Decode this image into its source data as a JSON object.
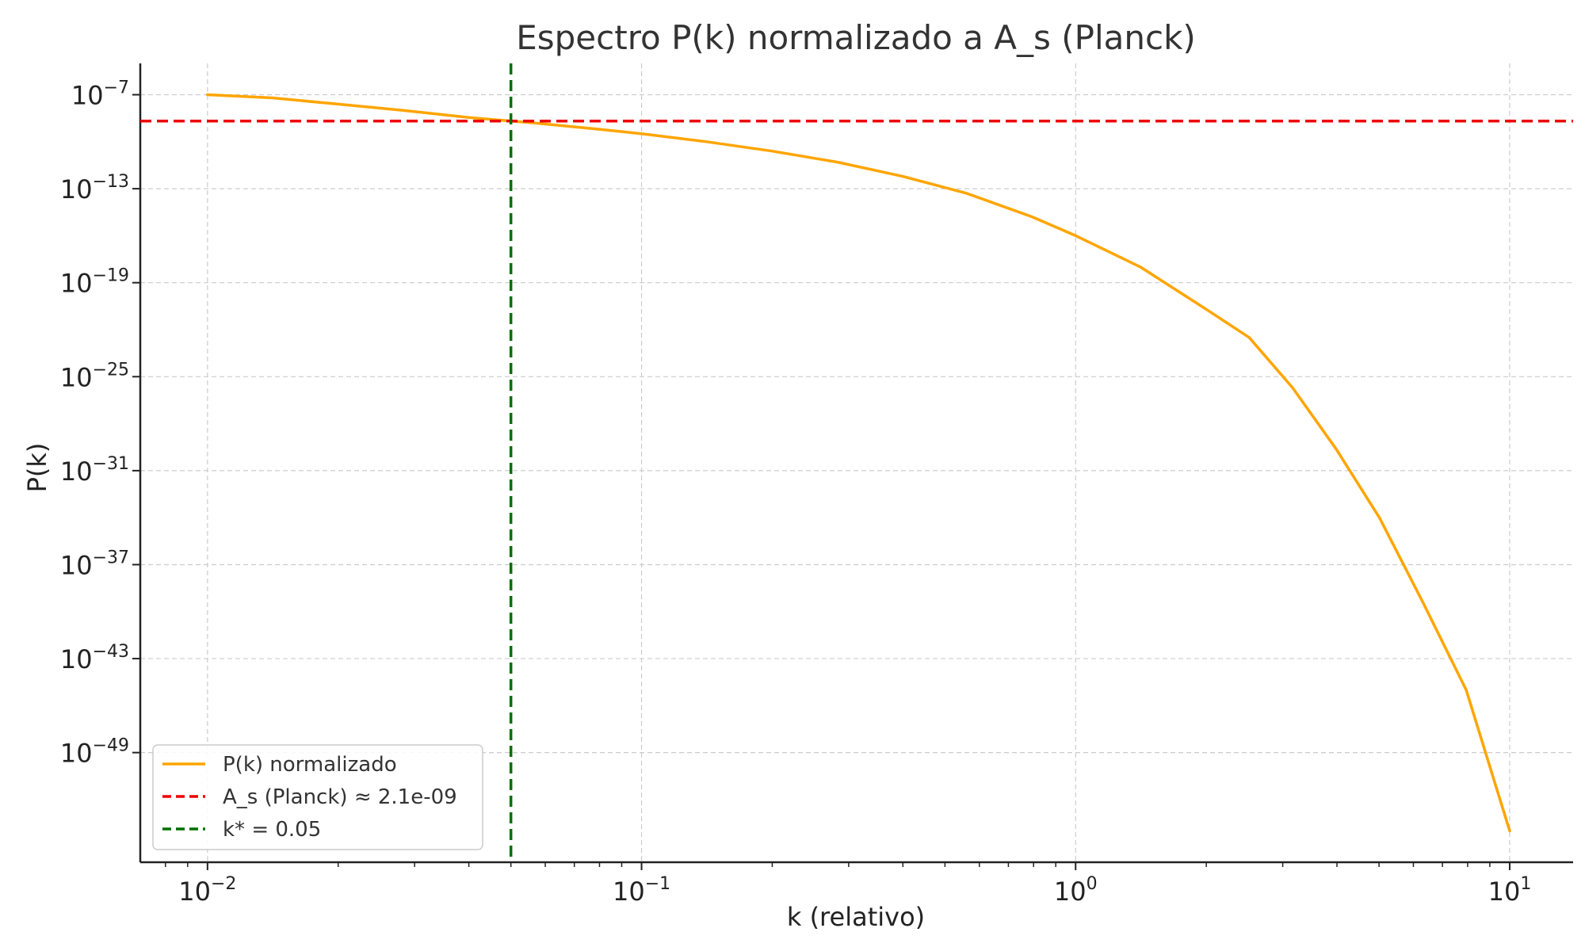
{
  "chart_data": {
    "type": "line",
    "title": "Espectro P(k) normalizado a A_s (Planck)",
    "xlabel": "k (relativo)",
    "ylabel": "P(k)",
    "xscale": "log",
    "yscale": "log",
    "xlim": [
      0.007,
      14
    ],
    "ylim": [
      1e-56,
      1e-05
    ],
    "grid": true,
    "legend_position": "lower-left",
    "x_ticks": [
      {
        "value": 0.01,
        "base": "10",
        "exp": "−2"
      },
      {
        "value": 0.1,
        "base": "10",
        "exp": "−1"
      },
      {
        "value": 1,
        "base": "10",
        "exp": "0"
      },
      {
        "value": 10,
        "base": "10",
        "exp": "1"
      }
    ],
    "y_ticks": [
      {
        "value": 1e-07,
        "base": "10",
        "exp": "−7"
      },
      {
        "value": 1e-13,
        "base": "10",
        "exp": "−13"
      },
      {
        "value": 1e-19,
        "base": "10",
        "exp": "−19"
      },
      {
        "value": 1e-25,
        "base": "10",
        "exp": "−25"
      },
      {
        "value": 1e-31,
        "base": "10",
        "exp": "−31"
      },
      {
        "value": 1e-37,
        "base": "10",
        "exp": "−37"
      },
      {
        "value": 1e-43,
        "base": "10",
        "exp": "−43"
      },
      {
        "value": 1e-49,
        "base": "10",
        "exp": "−49"
      }
    ],
    "series": [
      {
        "name": "P(k) normalizado",
        "color": "#FFA500",
        "style": "solid",
        "x": [
          0.01,
          0.0141,
          0.02,
          0.0282,
          0.04,
          0.05,
          0.0562,
          0.0794,
          0.1,
          0.141,
          0.2,
          0.282,
          0.398,
          0.562,
          0.794,
          1.0,
          1.41,
          2.0,
          2.51,
          3.16,
          3.98,
          5.01,
          6.31,
          7.94,
          10.0
        ],
        "y": [
          1e-07,
          6.3e-08,
          2.5e-08,
          1e-08,
          3.5e-09,
          2.1e-09,
          1.6e-09,
          6.3e-10,
          3.2e-10,
          1e-10,
          2.5e-11,
          5e-12,
          6.3e-13,
          5e-14,
          1.6e-15,
          1e-16,
          1e-18,
          2e-21,
          3.2e-23,
          2e-26,
          2.5e-30,
          1e-34,
          4e-40,
          1e-45,
          1e-54
        ]
      },
      {
        "name": "A_s (Planck) ≈ 2.1e-09",
        "color": "#EE0000",
        "style": "dashed",
        "orientation": "horizontal",
        "y_value": 2.1e-09
      },
      {
        "name": "k* = 0.05",
        "color": "#007000",
        "style": "dashed",
        "orientation": "vertical",
        "x_value": 0.05
      }
    ]
  }
}
